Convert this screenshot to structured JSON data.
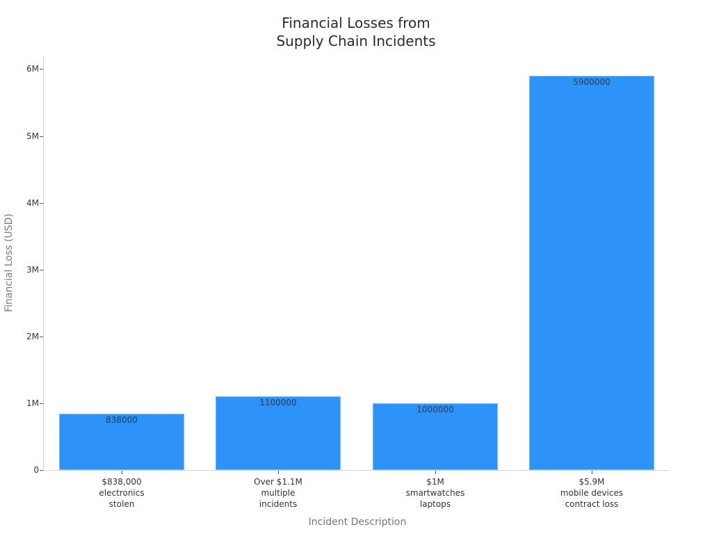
{
  "chart_data": {
    "type": "bar",
    "title": "Financial Losses from Supply Chain Incidents",
    "title_lines": [
      "Financial Losses from",
      "Supply Chain Incidents"
    ],
    "xlabel": "Incident Description",
    "ylabel": "Financial Loss (USD)",
    "categories": [
      "$838,000 electronics stolen",
      "Over $1.1M multiple incidents",
      "$1M smartwatches laptops",
      "$5.9M mobile devices contract loss"
    ],
    "category_lines": [
      [
        "$838,000",
        "electronics",
        "stolen"
      ],
      [
        "Over $1.1M",
        "multiple",
        "incidents"
      ],
      [
        "$1M",
        "smartwatches",
        "laptops"
      ],
      [
        "$5.9M",
        "mobile devices",
        "contract loss"
      ]
    ],
    "values": [
      838000,
      1100000,
      1000000,
      5900000
    ],
    "value_labels": [
      "838000",
      "1100000",
      "1000000",
      "5900000"
    ],
    "ylim": [
      0,
      6200000
    ],
    "yticks": [
      0,
      1000000,
      2000000,
      3000000,
      4000000,
      5000000,
      6000000
    ],
    "ytick_labels": [
      "0",
      "1M",
      "2M",
      "3M",
      "4M",
      "5M",
      "6M"
    ],
    "grid": false,
    "legend": null,
    "bar_color": "#2e93f8"
  }
}
